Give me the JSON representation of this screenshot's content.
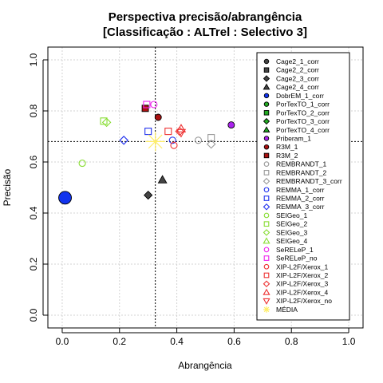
{
  "chart_data": {
    "type": "scatter",
    "title_line1": "Perspectiva precisão/abrangência",
    "title_line2": "[Classificação : ALTrel : Selectivo 3]",
    "xlabel": "Abrangência",
    "ylabel": "Precisão",
    "xlim": [
      -0.05,
      1.05
    ],
    "ylim": [
      -0.05,
      1.05
    ],
    "xticks": [
      "0.0",
      "0.2",
      "0.4",
      "0.6",
      "0.8",
      "1.0"
    ],
    "yticks": [
      "0.0",
      "0.2",
      "0.4",
      "0.6",
      "0.8",
      "1.0"
    ],
    "grid": true,
    "legend_position": "right",
    "reference_lines": {
      "x": 0.325,
      "y": 0.68
    },
    "series": [
      {
        "name": "Cage2_1_corr",
        "color": "#444444",
        "shape": "circle",
        "filled": true,
        "small": true,
        "points": []
      },
      {
        "name": "Cage2_2_corr",
        "color": "#444444",
        "shape": "square",
        "filled": true,
        "small": true,
        "points": []
      },
      {
        "name": "Cage2_3_corr",
        "color": "#444444",
        "shape": "diamond",
        "filled": true,
        "small": true,
        "points": [
          [
            0.3,
            0.47
          ]
        ]
      },
      {
        "name": "Cage2_4_corr",
        "color": "#444444",
        "shape": "triangle",
        "filled": true,
        "small": true,
        "points": [
          [
            0.35,
            0.53
          ]
        ]
      },
      {
        "name": "DobrEM_1_corr",
        "color": "#1133ee",
        "shape": "circle",
        "filled": true,
        "small": false,
        "points": [
          [
            0.01,
            0.46
          ]
        ]
      },
      {
        "name": "PorTexTO_1_corr",
        "color": "#22aa22",
        "shape": "circle",
        "filled": true,
        "small": true,
        "points": []
      },
      {
        "name": "PorTexTO_2_corr",
        "color": "#22aa22",
        "shape": "square",
        "filled": true,
        "small": true,
        "points": []
      },
      {
        "name": "PorTexTO_3_corr",
        "color": "#22aa22",
        "shape": "diamond",
        "filled": true,
        "small": true,
        "points": []
      },
      {
        "name": "PorTexTO_4_corr",
        "color": "#22aa22",
        "shape": "triangle",
        "filled": true,
        "small": true,
        "points": []
      },
      {
        "name": "Priberam_1",
        "color": "#aa22ee",
        "shape": "circle",
        "filled": true,
        "small": true,
        "points": [
          [
            0.59,
            0.745
          ]
        ]
      },
      {
        "name": "R3M_1",
        "color": "#aa1111",
        "shape": "circle",
        "filled": true,
        "small": true,
        "points": [
          [
            0.335,
            0.775
          ]
        ]
      },
      {
        "name": "R3M_2",
        "color": "#aa1111",
        "shape": "square",
        "filled": true,
        "small": true,
        "points": [
          [
            0.29,
            0.81
          ]
        ]
      },
      {
        "name": "REMBRANDT_1",
        "color": "#999999",
        "shape": "circle",
        "filled": false,
        "small": true,
        "points": [
          [
            0.475,
            0.685
          ]
        ]
      },
      {
        "name": "REMBRANDT_2",
        "color": "#999999",
        "shape": "square",
        "filled": false,
        "small": true,
        "points": [
          [
            0.52,
            0.695
          ]
        ]
      },
      {
        "name": "REMBRANDT_3_corr",
        "color": "#999999",
        "shape": "diamond",
        "filled": false,
        "small": true,
        "points": [
          [
            0.52,
            0.67
          ]
        ]
      },
      {
        "name": "REMMA_1_corr",
        "color": "#2233ee",
        "shape": "circle",
        "filled": false,
        "small": true,
        "points": [
          [
            0.385,
            0.685
          ]
        ]
      },
      {
        "name": "REMMA_2_corr",
        "color": "#2233ee",
        "shape": "square",
        "filled": false,
        "small": true,
        "points": [
          [
            0.3,
            0.72
          ]
        ]
      },
      {
        "name": "REMMA_3_corr",
        "color": "#2233ee",
        "shape": "diamond",
        "filled": false,
        "small": true,
        "points": [
          [
            0.215,
            0.685
          ]
        ]
      },
      {
        "name": "SEIGeo_1",
        "color": "#88dd33",
        "shape": "circle",
        "filled": false,
        "small": true,
        "points": [
          [
            0.07,
            0.595
          ]
        ]
      },
      {
        "name": "SEIGeo_2",
        "color": "#88dd33",
        "shape": "square",
        "filled": false,
        "small": true,
        "points": [
          [
            0.145,
            0.76
          ]
        ]
      },
      {
        "name": "SEIGeo_3",
        "color": "#88dd33",
        "shape": "diamond",
        "filled": false,
        "small": true,
        "points": [
          [
            0.155,
            0.755
          ]
        ]
      },
      {
        "name": "SEIGeo_4",
        "color": "#88dd33",
        "shape": "triangle",
        "filled": false,
        "small": true,
        "points": []
      },
      {
        "name": "SeRELeP_1",
        "color": "#ee22ee",
        "shape": "circle",
        "filled": false,
        "small": true,
        "points": [
          [
            0.32,
            0.825
          ]
        ]
      },
      {
        "name": "SeRELeP_no",
        "color": "#ee22ee",
        "shape": "square",
        "filled": false,
        "small": true,
        "points": [
          [
            0.295,
            0.825
          ]
        ]
      },
      {
        "name": "XIP-L2F/Xerox_1",
        "color": "#ee3333",
        "shape": "circle",
        "filled": false,
        "small": true,
        "points": [
          [
            0.39,
            0.665
          ]
        ]
      },
      {
        "name": "XIP-L2F/Xerox_2",
        "color": "#ee3333",
        "shape": "square",
        "filled": false,
        "small": true,
        "points": [
          [
            0.37,
            0.72
          ]
        ]
      },
      {
        "name": "XIP-L2F/Xerox_3",
        "color": "#ee3333",
        "shape": "diamond",
        "filled": false,
        "small": true,
        "points": [
          [
            0.41,
            0.72
          ]
        ]
      },
      {
        "name": "XIP-L2F/Xerox_4",
        "color": "#ee3333",
        "shape": "triangle",
        "filled": false,
        "small": true,
        "points": [
          [
            0.415,
            0.73
          ]
        ]
      },
      {
        "name": "XIP-L2F/Xerox_no",
        "color": "#ee3333",
        "shape": "triangle-down",
        "filled": false,
        "small": true,
        "points": [
          [
            0.415,
            0.715
          ]
        ]
      },
      {
        "name": "MÉDIA",
        "color": "#ffee66",
        "shape": "star",
        "filled": false,
        "small": false,
        "points": [
          [
            0.325,
            0.68
          ]
        ]
      }
    ]
  }
}
